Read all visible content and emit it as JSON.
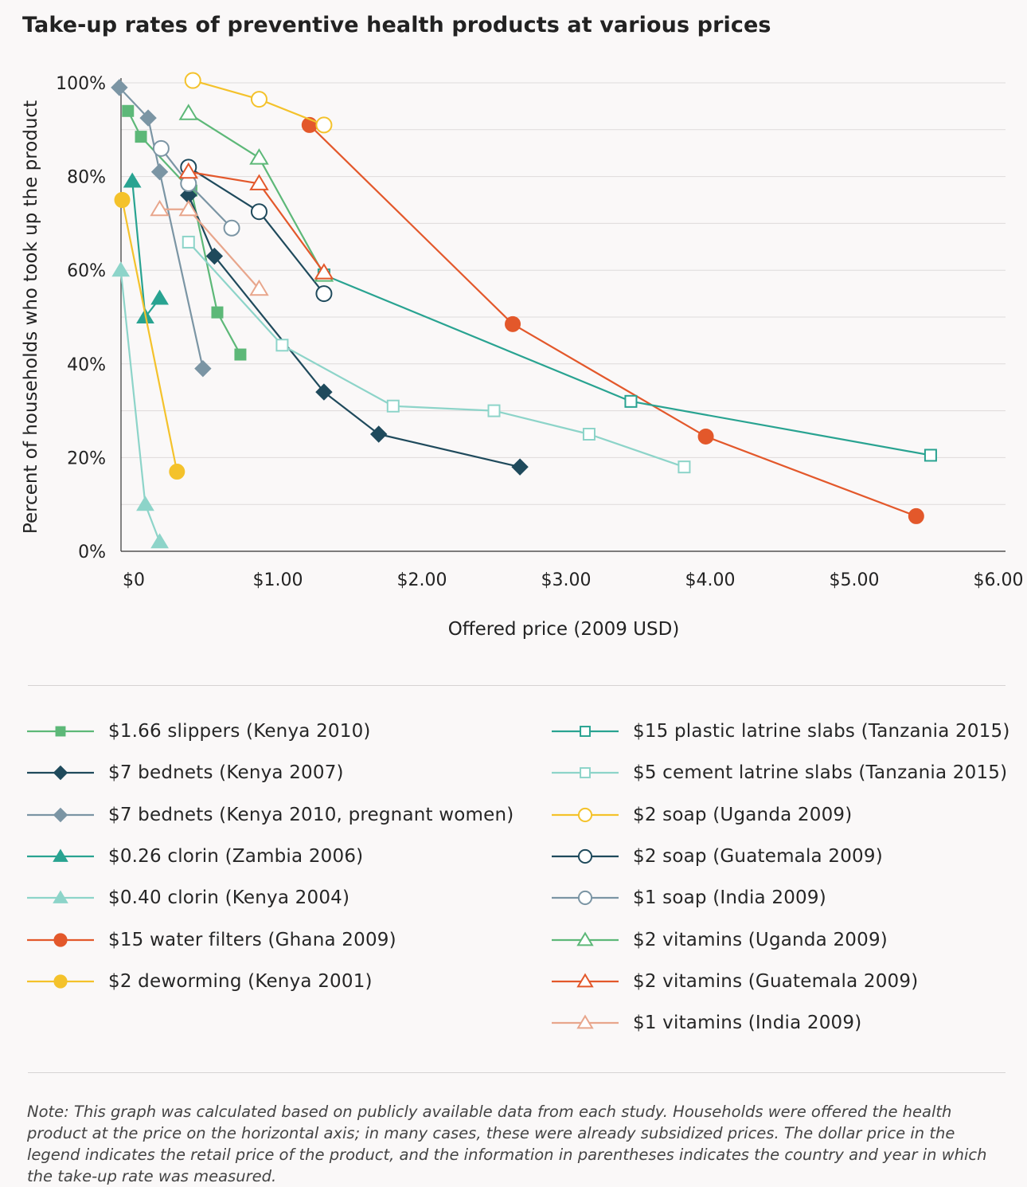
{
  "title": "Take-up rates of preventive health products at various prices",
  "note": "Note: This graph was calculated based on publicly available data from each study. Households were offered the health product at the price on the horizontal axis; in many cases, these were already subsidized prices. The dollar price in the legend indicates the retail price of the product, and the information in parentheses indicates the country and year in which the take-up rate was measured.",
  "chart_data": {
    "type": "line",
    "title": "Take-up rates of preventive health products at various prices",
    "xlabel": "Offered price (2009 USD)",
    "ylabel": "Percent of households who took up the product",
    "xlim": [
      -0.1,
      6.0
    ],
    "ylim": [
      0,
      100
    ],
    "xticks": [
      0,
      1,
      2,
      3,
      4,
      5,
      6
    ],
    "xtick_labels": [
      "$0",
      "$1.00",
      "$2.00",
      "$3.00",
      "$4.00",
      "$5.00",
      "$6.00"
    ],
    "yticks": [
      0,
      20,
      40,
      60,
      80,
      100
    ],
    "ytick_labels": [
      "0%",
      "20%",
      "40%",
      "60%",
      "80%",
      "100%"
    ],
    "grid": "horizontal",
    "legend_position": "bottom",
    "series": [
      {
        "name": "$1.66 slippers (Kenya 2010)",
        "color": "#5db878",
        "marker": "square",
        "filled": true,
        "x": [
          -0.04,
          0.05,
          0.4,
          0.58,
          0.74
        ],
        "y": [
          94,
          88.5,
          77,
          51,
          42
        ]
      },
      {
        "name": "$7 bednets (Kenya 2007)",
        "color": "#1f4a5c",
        "marker": "diamond",
        "filled": true,
        "x": [
          0.38,
          0.56,
          1.32,
          1.7,
          2.68
        ],
        "y": [
          76,
          63,
          34,
          25,
          18
        ]
      },
      {
        "name": "$7 bednets (Kenya 2010, pregnant women)",
        "color": "#7b95a4",
        "marker": "diamond",
        "filled": true,
        "x": [
          -0.1,
          0.1,
          0.18,
          0.48
        ],
        "y": [
          99,
          92.5,
          81,
          39
        ]
      },
      {
        "name": "$0.26 clorin (Zambia 2006)",
        "color": "#29a391",
        "marker": "triangle",
        "filled": true,
        "x": [
          -0.01,
          0.08,
          0.18
        ],
        "y": [
          79,
          50,
          54
        ]
      },
      {
        "name": "$0.40 clorin (Kenya 2004)",
        "color": "#8dd4c9",
        "marker": "triangle",
        "filled": true,
        "x": [
          -0.09,
          0.08,
          0.18
        ],
        "y": [
          60,
          10,
          2
        ]
      },
      {
        "name": "$15 water filters (Ghana 2009)",
        "color": "#e3582b",
        "marker": "circle",
        "filled": true,
        "x": [
          1.22,
          2.63,
          3.97,
          5.43
        ],
        "y": [
          91,
          48.5,
          24.5,
          7.5
        ]
      },
      {
        "name": "$2 deworming (Kenya 2001)",
        "color": "#f4c22b",
        "marker": "circle",
        "filled": true,
        "x": [
          -0.08,
          0.3
        ],
        "y": [
          75,
          17
        ]
      },
      {
        "name": "$15 plastic latrine slabs (Tanzania 2015)",
        "color": "#29a391",
        "marker": "square",
        "filled": false,
        "x": [
          1.32,
          3.45,
          5.53
        ],
        "y": [
          59,
          32,
          20.5
        ]
      },
      {
        "name": "$5 cement latrine slabs (Tanzania 2015)",
        "color": "#8dd4c9",
        "marker": "square",
        "filled": false,
        "x": [
          0.38,
          1.03,
          1.8,
          2.5,
          3.16,
          3.82
        ],
        "y": [
          66,
          44,
          31,
          30,
          25,
          18
        ]
      },
      {
        "name": "$2 soap (Uganda 2009)",
        "color": "#f4c22b",
        "marker": "circle",
        "filled": false,
        "x": [
          0.41,
          0.87,
          1.32
        ],
        "y": [
          100.5,
          96.5,
          91
        ]
      },
      {
        "name": "$2 soap (Guatemala 2009)",
        "color": "#1f4a5c",
        "marker": "circle",
        "filled": false,
        "x": [
          0.38,
          0.87,
          1.32
        ],
        "y": [
          82,
          72.5,
          55
        ]
      },
      {
        "name": "$1 soap (India 2009)",
        "color": "#7b95a4",
        "marker": "circle",
        "filled": false,
        "x": [
          0.19,
          0.38,
          0.68
        ],
        "y": [
          86,
          78.5,
          69
        ]
      },
      {
        "name": "$2 vitamins (Uganda 2009)",
        "color": "#5db878",
        "marker": "triangle",
        "filled": false,
        "x": [
          0.38,
          0.87,
          1.32
        ],
        "y": [
          93.5,
          84,
          59
        ]
      },
      {
        "name": "$2 vitamins (Guatemala 2009)",
        "color": "#e3582b",
        "marker": "triangle",
        "filled": false,
        "x": [
          0.38,
          0.87,
          1.32
        ],
        "y": [
          81,
          78.5,
          59.5
        ]
      },
      {
        "name": "$1 vitamins (India 2009)",
        "color": "#e8a68c",
        "marker": "triangle",
        "filled": false,
        "x": [
          0.18,
          0.38,
          0.87
        ],
        "y": [
          73,
          73,
          56
        ]
      }
    ]
  }
}
